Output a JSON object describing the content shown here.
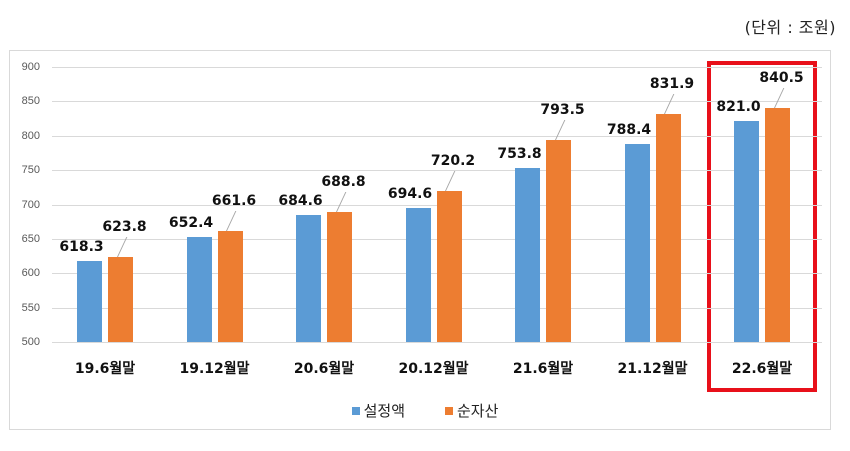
{
  "unit_label": "(단위 : 조원)",
  "chart_data": {
    "type": "bar",
    "title": "",
    "xlabel": "",
    "ylabel": "",
    "unit": "조원",
    "ylim": [
      500,
      900
    ],
    "yticks": [
      500,
      550,
      600,
      650,
      700,
      750,
      800,
      850,
      900
    ],
    "grid": true,
    "legend_position": "bottom",
    "categories": [
      "19.6월말",
      "19.12월말",
      "20.6월말",
      "20.12월말",
      "21.6월말",
      "21.12월말",
      "22.6월말"
    ],
    "series": [
      {
        "name": "설정액",
        "color": "#5b9bd5",
        "values": [
          618.3,
          652.4,
          684.6,
          694.6,
          753.8,
          788.4,
          821.0
        ],
        "labels": [
          "618.3",
          "652.4",
          "684.6",
          "694.6",
          "753.8",
          "788.4",
          "821.0"
        ]
      },
      {
        "name": "순자산",
        "color": "#ed7d31",
        "values": [
          623.8,
          661.6,
          688.8,
          720.2,
          793.5,
          831.9,
          840.5
        ],
        "labels": [
          "623.8",
          "661.6",
          "688.8",
          "720.2",
          "793.5",
          "831.9",
          "840.5"
        ]
      }
    ],
    "annotations": [
      {
        "type": "highlight-box",
        "category": "22.6월말",
        "color": "#e8101a"
      }
    ]
  }
}
